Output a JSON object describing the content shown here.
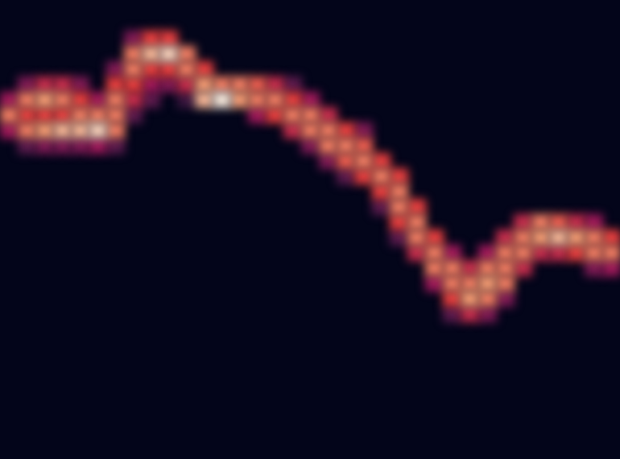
{
  "chart_data": {
    "type": "heatmap",
    "xlim": [
      0,
      35
    ],
    "ylim": [
      0,
      30
    ],
    "tick_labels": false,
    "color_range": [
      0,
      1
    ],
    "cells": [
      [
        0,
        23,
        0.5
      ],
      [
        0,
        22,
        0.8
      ],
      [
        0,
        21,
        0.5
      ],
      [
        1,
        24,
        0.4
      ],
      [
        1,
        23,
        0.8
      ],
      [
        1,
        22,
        0.7
      ],
      [
        1,
        21,
        0.8
      ],
      [
        1,
        20,
        0.3
      ],
      [
        2,
        24,
        0.6
      ],
      [
        2,
        23,
        0.85
      ],
      [
        2,
        22,
        0.7
      ],
      [
        2,
        21,
        0.85
      ],
      [
        2,
        20,
        0.4
      ],
      [
        3,
        24,
        0.6
      ],
      [
        3,
        23,
        0.8
      ],
      [
        3,
        22,
        0.7
      ],
      [
        3,
        21,
        0.9
      ],
      [
        3,
        20,
        0.4
      ],
      [
        4,
        24,
        0.4
      ],
      [
        4,
        23,
        0.7
      ],
      [
        4,
        22,
        0.8
      ],
      [
        4,
        21,
        0.9
      ],
      [
        4,
        20,
        0.4
      ],
      [
        5,
        23,
        0.5
      ],
      [
        5,
        22,
        0.8
      ],
      [
        5,
        21,
        0.95
      ],
      [
        5,
        20,
        0.5
      ],
      [
        6,
        25,
        0.4
      ],
      [
        6,
        24,
        0.7
      ],
      [
        6,
        23,
        0.8
      ],
      [
        6,
        22,
        0.8
      ],
      [
        6,
        21,
        0.8
      ],
      [
        6,
        20,
        0.3
      ],
      [
        7,
        27,
        0.4
      ],
      [
        7,
        26,
        0.8
      ],
      [
        7,
        25,
        0.8
      ],
      [
        7,
        24,
        0.7
      ],
      [
        7,
        23,
        0.6
      ],
      [
        7,
        22,
        0.3
      ],
      [
        8,
        27,
        0.7
      ],
      [
        8,
        26,
        0.9
      ],
      [
        8,
        25,
        0.7
      ],
      [
        8,
        24,
        0.5
      ],
      [
        8,
        23,
        0.3
      ],
      [
        9,
        27,
        0.7
      ],
      [
        9,
        26,
        0.95
      ],
      [
        9,
        25,
        0.7
      ],
      [
        9,
        24,
        0.4
      ],
      [
        10,
        26,
        0.8
      ],
      [
        10,
        25,
        0.8
      ],
      [
        10,
        24,
        0.6
      ],
      [
        10,
        23,
        0.2
      ],
      [
        11,
        25,
        0.7
      ],
      [
        11,
        24,
        0.85
      ],
      [
        11,
        23,
        0.9
      ],
      [
        12,
        24,
        0.8
      ],
      [
        12,
        23,
        1.0
      ],
      [
        13,
        24,
        0.8
      ],
      [
        13,
        23,
        0.85
      ],
      [
        14,
        24,
        0.75
      ],
      [
        14,
        23,
        0.8
      ],
      [
        14,
        22,
        0.5
      ],
      [
        15,
        24,
        0.6
      ],
      [
        15,
        23,
        0.8
      ],
      [
        15,
        22,
        0.7
      ],
      [
        16,
        24,
        0.3
      ],
      [
        16,
        23,
        0.7
      ],
      [
        16,
        22,
        0.8
      ],
      [
        16,
        21,
        0.6
      ],
      [
        17,
        23,
        0.5
      ],
      [
        17,
        22,
        0.8
      ],
      [
        17,
        21,
        0.8
      ],
      [
        17,
        20,
        0.4
      ],
      [
        18,
        22,
        0.6
      ],
      [
        18,
        21,
        0.8
      ],
      [
        18,
        20,
        0.8
      ],
      [
        18,
        19,
        0.4
      ],
      [
        19,
        21,
        0.7
      ],
      [
        19,
        20,
        0.8
      ],
      [
        19,
        19,
        0.75
      ],
      [
        19,
        18,
        0.3
      ],
      [
        20,
        21,
        0.4
      ],
      [
        20,
        20,
        0.75
      ],
      [
        20,
        19,
        0.8
      ],
      [
        20,
        18,
        0.7
      ],
      [
        21,
        19,
        0.7
      ],
      [
        21,
        18,
        0.8
      ],
      [
        21,
        17,
        0.7
      ],
      [
        21,
        16,
        0.3
      ],
      [
        22,
        18,
        0.7
      ],
      [
        22,
        17,
        0.8
      ],
      [
        22,
        16,
        0.8
      ],
      [
        22,
        15,
        0.7
      ],
      [
        22,
        14,
        0.3
      ],
      [
        23,
        16,
        0.7
      ],
      [
        23,
        15,
        0.8
      ],
      [
        23,
        14,
        0.8
      ],
      [
        23,
        13,
        0.6
      ],
      [
        24,
        14,
        0.7
      ],
      [
        24,
        13,
        0.8
      ],
      [
        24,
        12,
        0.8
      ],
      [
        24,
        11,
        0.5
      ],
      [
        25,
        13,
        0.5
      ],
      [
        25,
        12,
        0.8
      ],
      [
        25,
        11,
        0.8
      ],
      [
        25,
        10,
        0.7
      ],
      [
        25,
        9,
        0.3
      ],
      [
        26,
        12,
        0.6
      ],
      [
        26,
        11,
        0.8
      ],
      [
        26,
        10,
        0.85
      ],
      [
        26,
        9,
        0.6
      ],
      [
        27,
        13,
        0.5
      ],
      [
        27,
        12,
        0.8
      ],
      [
        27,
        11,
        0.85
      ],
      [
        27,
        10,
        0.8
      ],
      [
        27,
        9,
        0.4
      ],
      [
        28,
        14,
        0.6
      ],
      [
        28,
        13,
        0.8
      ],
      [
        28,
        12,
        0.8
      ],
      [
        28,
        11,
        0.8
      ],
      [
        28,
        10,
        0.4
      ],
      [
        29,
        15,
        0.6
      ],
      [
        29,
        14,
        0.8
      ],
      [
        29,
        13,
        0.8
      ],
      [
        29,
        12,
        0.6
      ],
      [
        30,
        15,
        0.8
      ],
      [
        30,
        14,
        0.85
      ],
      [
        30,
        13,
        0.6
      ],
      [
        31,
        15,
        0.75
      ],
      [
        31,
        14,
        0.9
      ],
      [
        31,
        13,
        0.6
      ],
      [
        32,
        15,
        0.6
      ],
      [
        32,
        14,
        0.85
      ],
      [
        32,
        13,
        0.7
      ],
      [
        33,
        15,
        0.5
      ],
      [
        33,
        14,
        0.8
      ],
      [
        33,
        13,
        0.8
      ],
      [
        33,
        12,
        0.4
      ],
      [
        34,
        14,
        0.7
      ],
      [
        34,
        13,
        0.8
      ],
      [
        34,
        12,
        0.5
      ]
    ]
  }
}
